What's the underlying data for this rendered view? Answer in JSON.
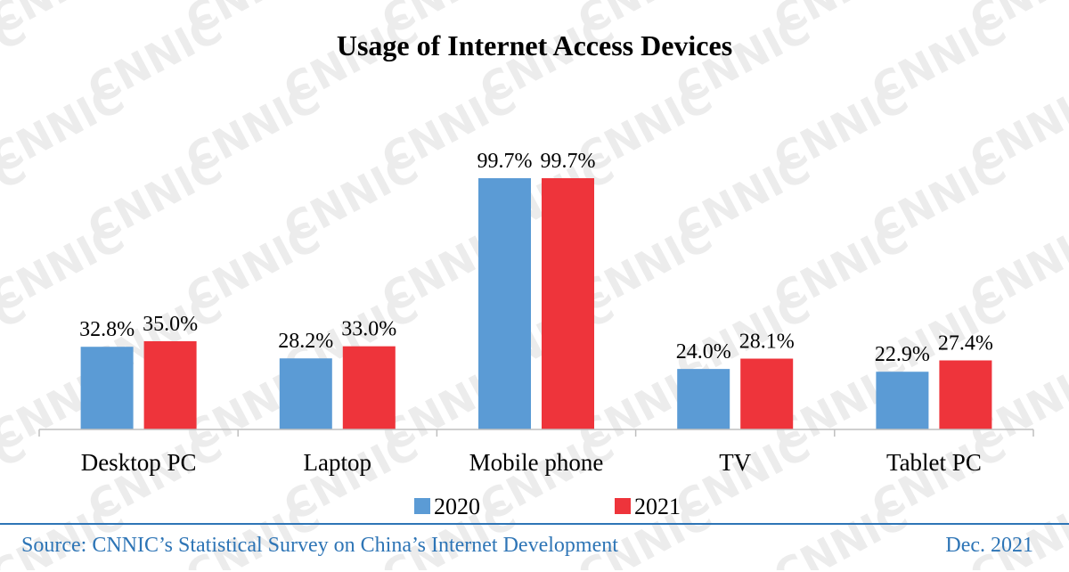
{
  "chart_data": {
    "type": "bar",
    "title": "Usage of Internet Access Devices",
    "categories": [
      "Desktop PC",
      "Laptop",
      "Mobile phone",
      "TV",
      "Tablet PC"
    ],
    "series": [
      {
        "name": "2020",
        "color": "#5b9bd5",
        "values": [
          32.8,
          28.2,
          99.7,
          24.0,
          22.9
        ],
        "labels": [
          "32.8%",
          "28.2%",
          "99.7%",
          "24.0%",
          "22.9%"
        ]
      },
      {
        "name": "2021",
        "color": "#ee343b",
        "values": [
          35.0,
          33.0,
          99.7,
          28.1,
          27.4
        ],
        "labels": [
          "35.0%",
          "33.0%",
          "99.7%",
          "28.1%",
          "27.4%"
        ]
      }
    ],
    "ylim": [
      0,
      100
    ],
    "grid": false,
    "legend_position": "bottom"
  },
  "footer": {
    "source": "Source: CNNIC’s Statistical Survey on China’s Internet Development",
    "date": "Dec. 2021"
  },
  "watermark": {
    "text": "CNNIC"
  }
}
